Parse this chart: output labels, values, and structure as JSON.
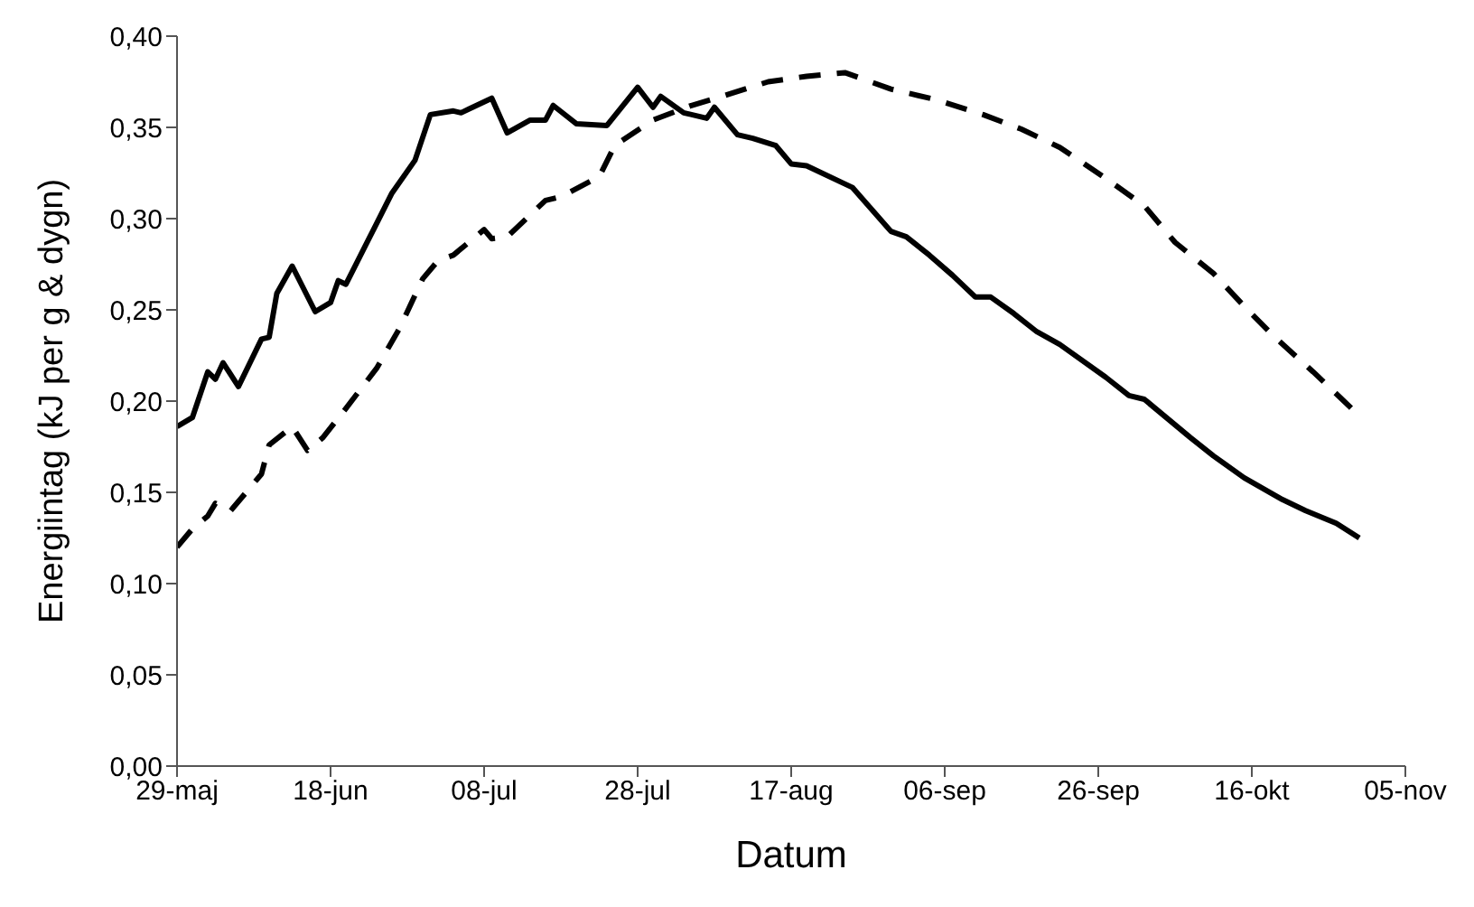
{
  "chart_data": {
    "type": "line",
    "xlabel": "Datum",
    "ylabel": "Energiintag (kJ per g & dygn)",
    "xlim": [
      "--05-29",
      "--11-05"
    ],
    "xticks": [
      {
        "value": "--05-29",
        "label": "29-maj"
      },
      {
        "value": "--06-18",
        "label": "18-jun"
      },
      {
        "value": "--07-08",
        "label": "08-jul"
      },
      {
        "value": "--07-28",
        "label": "28-jul"
      },
      {
        "value": "--08-17",
        "label": "17-aug"
      },
      {
        "value": "--09-06",
        "label": "06-sep"
      },
      {
        "value": "--09-26",
        "label": "26-sep"
      },
      {
        "value": "--10-16",
        "label": "16-okt"
      },
      {
        "value": "--11-05",
        "label": "05-nov"
      }
    ],
    "ylim": [
      0,
      0.4
    ],
    "yticks": [
      {
        "value": 0,
        "label": "0,00"
      },
      {
        "value": 0.05,
        "label": "0,05"
      },
      {
        "value": 0.1,
        "label": "0,10"
      },
      {
        "value": 0.15,
        "label": "0,15"
      },
      {
        "value": 0.2,
        "label": "0,20"
      },
      {
        "value": 0.25,
        "label": "0,25"
      },
      {
        "value": 0.3,
        "label": "0,30"
      },
      {
        "value": 0.35,
        "label": "0,35"
      },
      {
        "value": 0.4,
        "label": "0,40"
      }
    ],
    "series": [
      {
        "color": "#000000",
        "line_style": "solid",
        "x": [
          "--05-29",
          "--05-31",
          "--06-02",
          "--06-03",
          "--06-04",
          "--06-06",
          "--06-09",
          "--06-10",
          "--06-11",
          "--06-13",
          "--06-16",
          "--06-18",
          "--06-19",
          "--06-20",
          "--06-23",
          "--06-26",
          "--06-29",
          "--07-01",
          "--07-04",
          "--07-05",
          "--07-06",
          "--07-09",
          "--07-11",
          "--07-14",
          "--07-16",
          "--07-17",
          "--07-20",
          "--07-24",
          "--07-28",
          "--07-30",
          "--07-31",
          "--08-03",
          "--08-06",
          "--08-07",
          "--08-10",
          "--08-12",
          "--08-15",
          "--08-17",
          "--08-19",
          "--08-24",
          "--08-25",
          "--08-30",
          "--09-01",
          "--09-04",
          "--09-07",
          "--09-10",
          "--09-12",
          "--09-15",
          "--09-18",
          "--09-21",
          "--09-27",
          "--09-30",
          "--10-02",
          "--10-08",
          "--10-11",
          "--10-15",
          "--10-20",
          "--10-23",
          "--10-27",
          "--10-30"
        ],
        "values": [
          0.186,
          0.191,
          0.216,
          0.212,
          0.221,
          0.208,
          0.234,
          0.235,
          0.259,
          0.274,
          0.249,
          0.254,
          0.266,
          0.264,
          0.289,
          0.314,
          0.332,
          0.357,
          0.359,
          0.358,
          0.36,
          0.366,
          0.347,
          0.354,
          0.354,
          0.362,
          0.352,
          0.351,
          0.372,
          0.361,
          0.367,
          0.358,
          0.355,
          0.361,
          0.346,
          0.344,
          0.34,
          0.33,
          0.329,
          0.319,
          0.317,
          0.293,
          0.29,
          0.28,
          0.269,
          0.257,
          0.257,
          0.248,
          0.238,
          0.231,
          0.213,
          0.203,
          0.201,
          0.18,
          0.17,
          0.158,
          0.146,
          0.14,
          0.133,
          0.125
        ]
      },
      {
        "color": "#000000",
        "line_style": "dashed",
        "x": [
          "--05-29",
          "--05-31",
          "--06-02",
          "--06-03",
          "--06-05",
          "--06-09",
          "--06-10",
          "--06-13",
          "--06-15",
          "--06-17",
          "--06-20",
          "--06-24",
          "--06-27",
          "--06-30",
          "--07-02",
          "--07-04",
          "--07-08",
          "--07-09",
          "--07-11",
          "--07-16",
          "--07-18",
          "--07-23",
          "--07-25",
          "--07-30",
          "--08-04",
          "--08-08",
          "--08-14",
          "--08-19",
          "--08-24",
          "--08-30",
          "--09-05",
          "--09-11",
          "--09-16",
          "--09-21",
          "--09-27",
          "--10-02",
          "--10-06",
          "--10-11",
          "--10-15",
          "--10-19",
          "--10-24",
          "--10-29"
        ],
        "values": [
          0.12,
          0.13,
          0.137,
          0.144,
          0.14,
          0.16,
          0.176,
          0.186,
          0.173,
          0.18,
          0.196,
          0.218,
          0.24,
          0.267,
          0.277,
          0.28,
          0.294,
          0.289,
          0.29,
          0.31,
          0.312,
          0.323,
          0.34,
          0.354,
          0.362,
          0.367,
          0.375,
          0.378,
          0.38,
          0.371,
          0.365,
          0.357,
          0.349,
          0.339,
          0.322,
          0.307,
          0.287,
          0.27,
          0.252,
          0.235,
          0.216,
          0.196
        ]
      }
    ]
  }
}
